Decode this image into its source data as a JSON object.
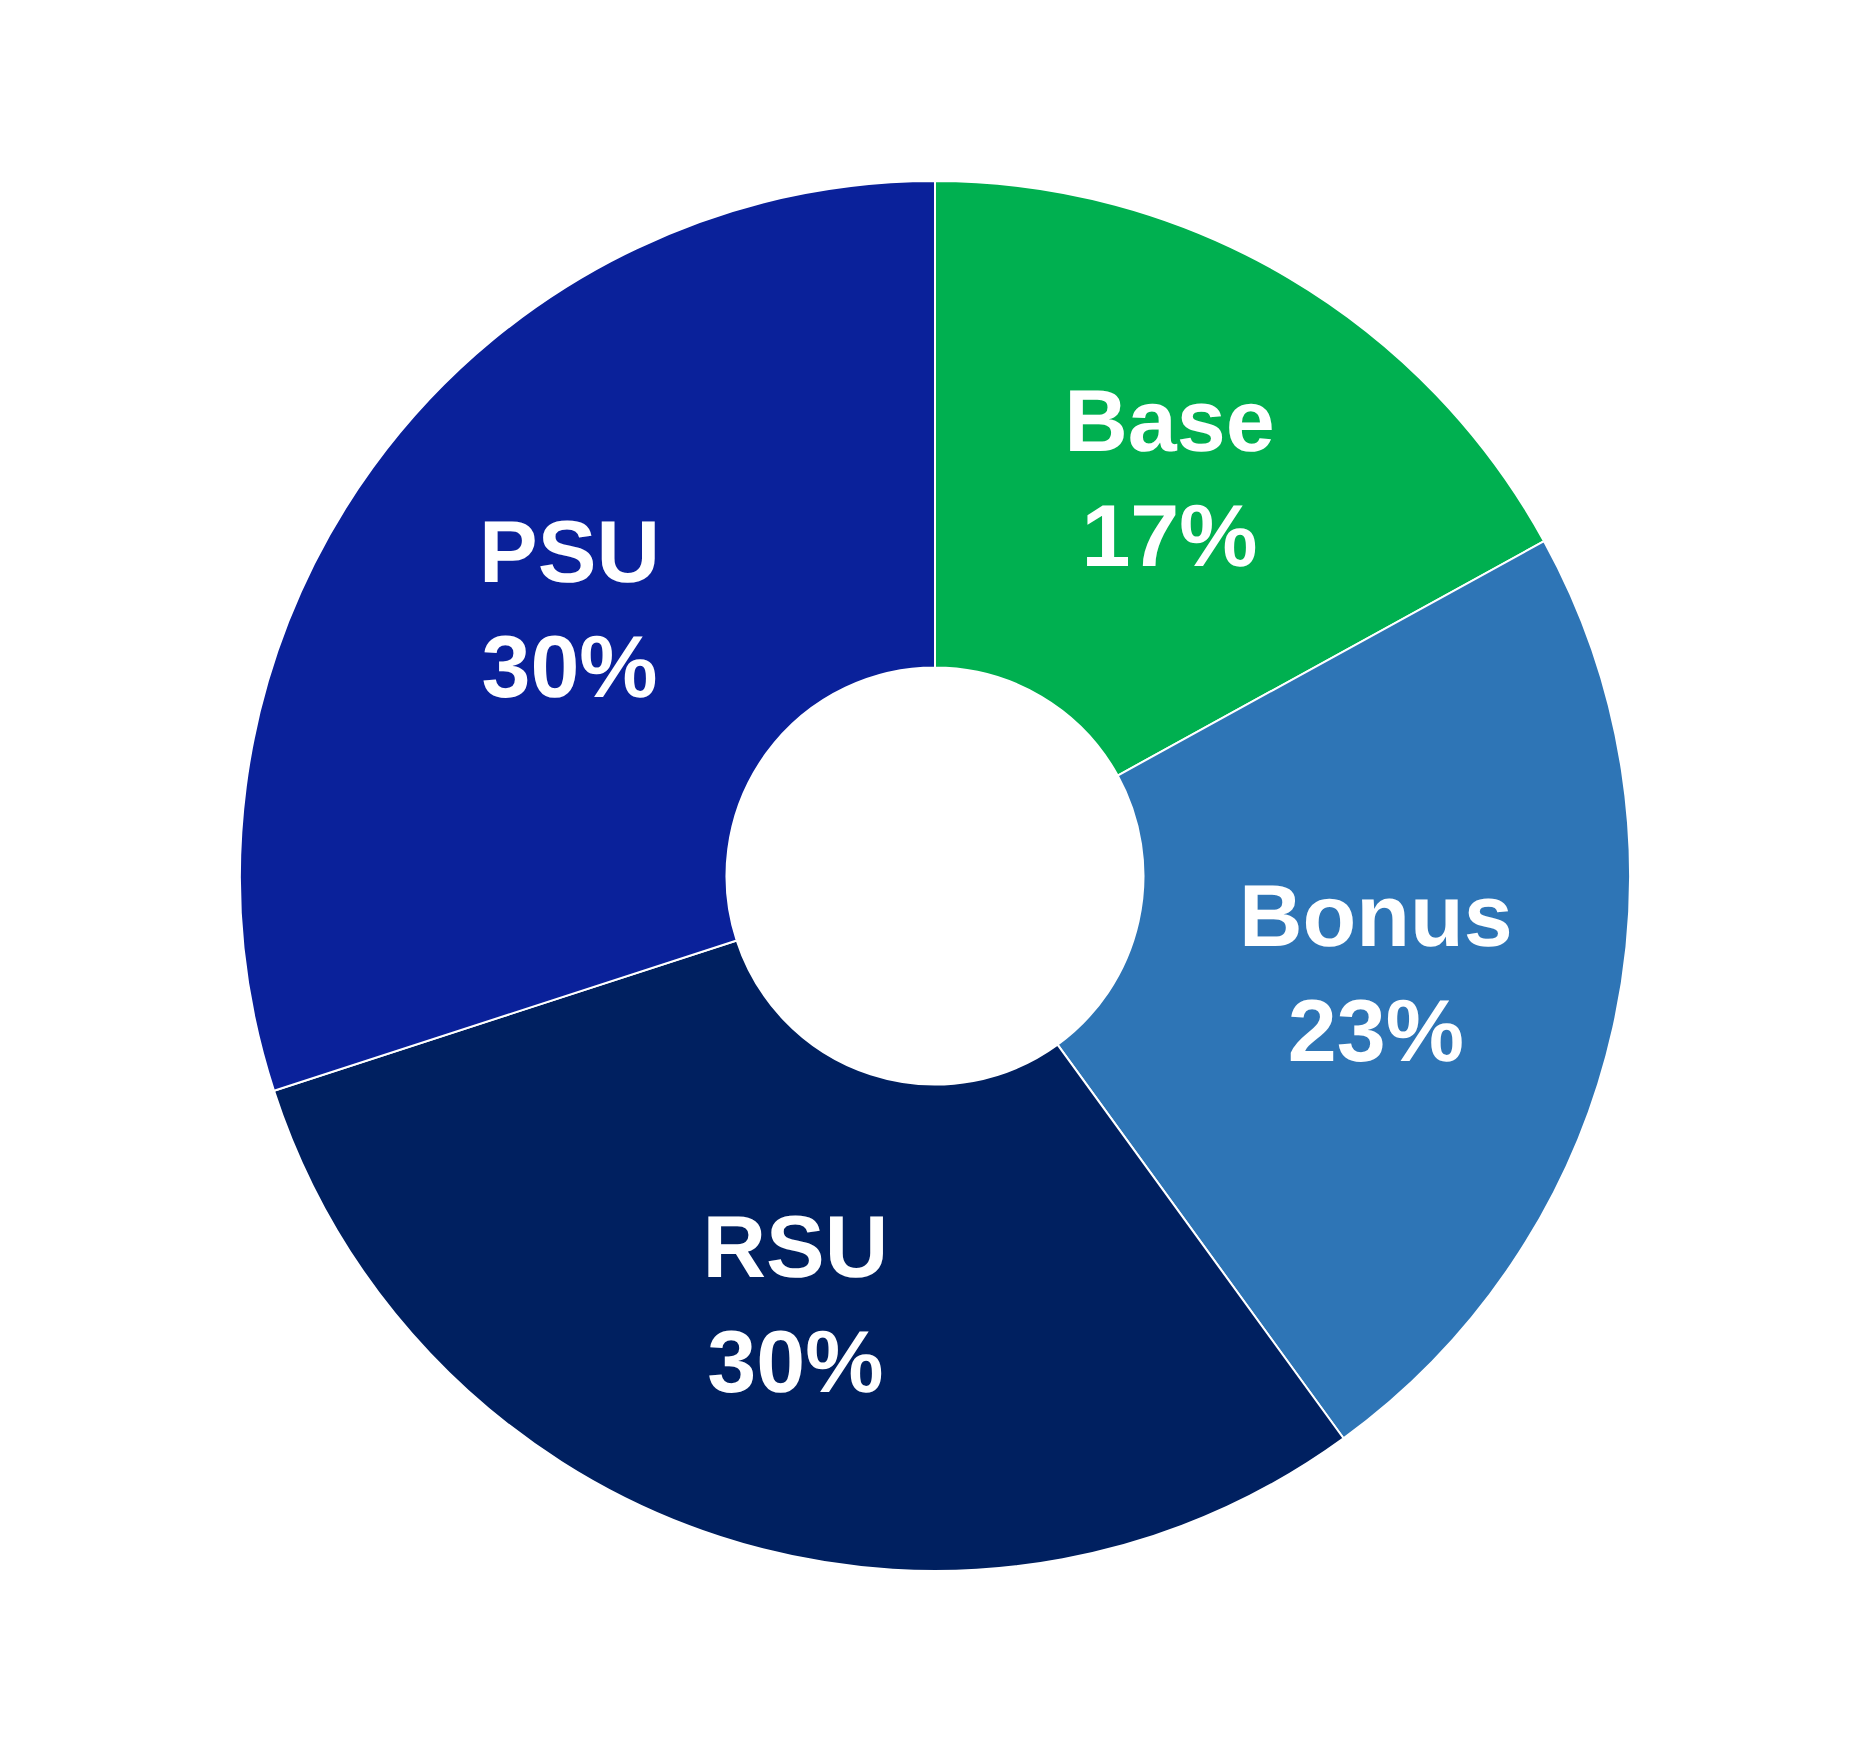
{
  "chart_data": {
    "type": "donut",
    "categories": [
      "Base",
      "Bonus",
      "RSU",
      "PSU"
    ],
    "values": [
      17,
      23,
      30,
      30
    ],
    "value_labels": [
      "17%",
      "23%",
      "30%",
      "30%"
    ],
    "colors": [
      "#00b050",
      "#2e75b6",
      "#002060",
      "#0a219a"
    ],
    "legend": false
  }
}
